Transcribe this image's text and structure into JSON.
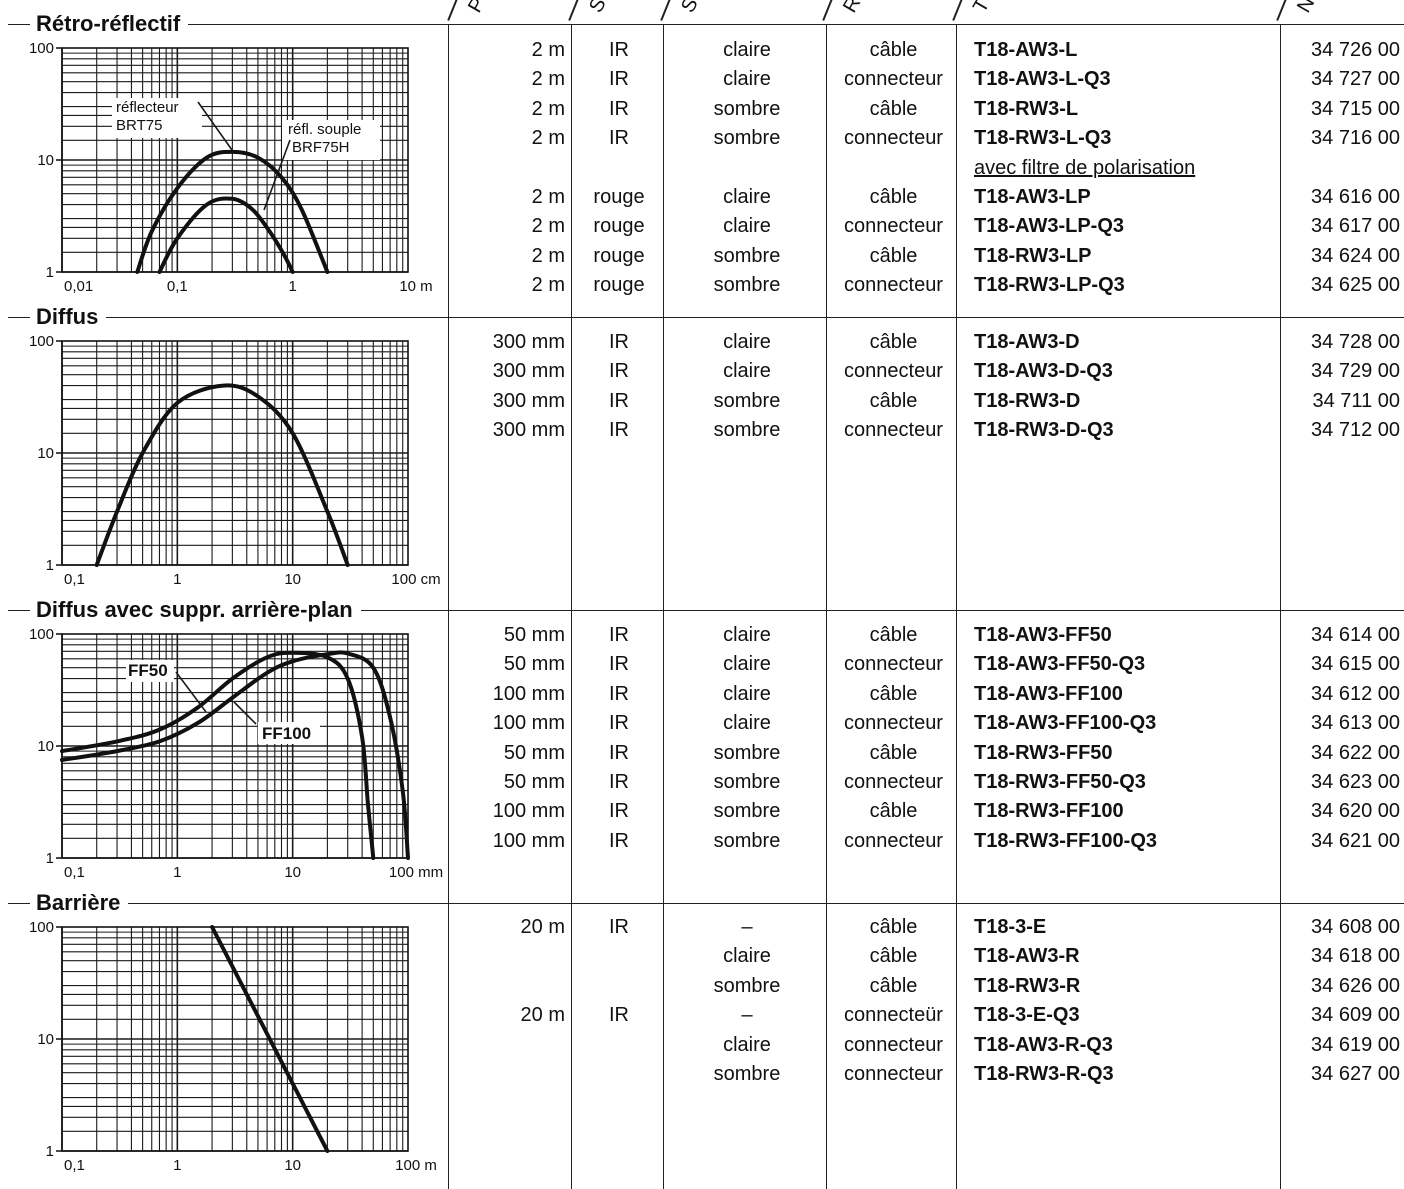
{
  "header_fragments": [
    {
      "text": "P"
    },
    {
      "text": "S"
    },
    {
      "text": "S"
    },
    {
      "text": "R"
    },
    {
      "text": "T"
    },
    {
      "text": "N"
    }
  ],
  "sections": [
    {
      "title": "Rétro-réflectif",
      "chart_data": {
        "type": "line",
        "x_scale": "log",
        "y_scale": "log",
        "xlim": [
          0.01,
          10
        ],
        "ylim": [
          1,
          100
        ],
        "x_tick_labels": [
          "0,01",
          "0,1",
          "1",
          "10 m"
        ],
        "y_tick_labels": [
          "100",
          "10",
          "1"
        ],
        "grid": true,
        "annotations": [
          "réflecteur",
          "BRT75",
          "réfl. souple",
          "BRF75H"
        ],
        "series": [
          {
            "name": "réflecteur BRT75",
            "x": [
              0.045,
              0.06,
              0.1,
              0.18,
              0.3,
              0.5,
              0.8,
              1.2,
              2.0
            ],
            "y": [
              1,
              2.3,
              5.6,
              10.5,
              11.8,
              10.5,
              7,
              3.6,
              1
            ]
          },
          {
            "name": "réfl. souple BRF75H",
            "x": [
              0.07,
              0.1,
              0.18,
              0.3,
              0.45,
              0.65,
              0.85,
              1.0
            ],
            "y": [
              1,
              2.0,
              4.0,
              4.5,
              3.6,
              2.2,
              1.4,
              1
            ]
          }
        ]
      },
      "products": [
        {
          "range": "2 m",
          "source": "IR",
          "mode": "claire",
          "connection": "câble",
          "type": "T18-AW3-L",
          "article": "34 726 00"
        },
        {
          "range": "2 m",
          "source": "IR",
          "mode": "claire",
          "connection": "connecteur",
          "type": "T18-AW3-L-Q3",
          "article": "34 727 00"
        },
        {
          "range": "2 m",
          "source": "IR",
          "mode": "sombre",
          "connection": "câble",
          "type": "T18-RW3-L",
          "article": "34 715 00"
        },
        {
          "range": "2 m",
          "source": "IR",
          "mode": "sombre",
          "connection": "connecteur",
          "type": "T18-RW3-L-Q3",
          "article": "34 716 00"
        },
        {
          "subheading": "avec filtre de polarisation"
        },
        {
          "range": "2 m",
          "source": "rouge",
          "mode": "claire",
          "connection": "câble",
          "type": "T18-AW3-LP",
          "article": "34 616 00"
        },
        {
          "range": "2 m",
          "source": "rouge",
          "mode": "claire",
          "connection": "connecteur",
          "type": "T18-AW3-LP-Q3",
          "article": "34 617 00"
        },
        {
          "range": "2 m",
          "source": "rouge",
          "mode": "sombre",
          "connection": "câble",
          "type": "T18-RW3-LP",
          "article": "34 624 00"
        },
        {
          "range": "2 m",
          "source": "rouge",
          "mode": "sombre",
          "connection": "connecteur",
          "type": "T18-RW3-LP-Q3",
          "article": "34 625 00"
        }
      ]
    },
    {
      "title": "Diffus",
      "chart_data": {
        "type": "line",
        "x_scale": "log",
        "y_scale": "log",
        "xlim": [
          0.1,
          100
        ],
        "ylim": [
          1,
          100
        ],
        "x_tick_labels": [
          "0,1",
          "1",
          "10",
          "100 cm"
        ],
        "y_tick_labels": [
          "100",
          "10",
          "1"
        ],
        "grid": true,
        "series": [
          {
            "x": [
              0.2,
              0.3,
              0.5,
              1.0,
              2.5,
              5,
              10,
              20,
              30
            ],
            "y": [
              1,
              3,
              10,
              28,
              40,
              32,
              15,
              3,
              1
            ]
          }
        ]
      },
      "products": [
        {
          "range": "300 mm",
          "source": "IR",
          "mode": "claire",
          "connection": "câble",
          "type": "T18-AW3-D",
          "article": "34 728 00"
        },
        {
          "range": "300 mm",
          "source": "IR",
          "mode": "claire",
          "connection": "connecteur",
          "type": "T18-AW3-D-Q3",
          "article": "34 729 00"
        },
        {
          "range": "300 mm",
          "source": "IR",
          "mode": "sombre",
          "connection": "câble",
          "type": "T18-RW3-D",
          "article": "34 711 00"
        },
        {
          "range": "300 mm",
          "source": "IR",
          "mode": "sombre",
          "connection": "connecteur",
          "type": "T18-RW3-D-Q3",
          "article": "34 712 00"
        }
      ]
    },
    {
      "title": "Diffus  avec suppr. arrière-plan",
      "chart_data": {
        "type": "line",
        "x_scale": "log",
        "y_scale": "log",
        "xlim": [
          0.1,
          100
        ],
        "ylim": [
          1,
          100
        ],
        "x_tick_labels": [
          "0,1",
          "1",
          "10",
          "100 mm"
        ],
        "y_tick_labels": [
          "100",
          "10",
          "1"
        ],
        "grid": true,
        "series": [
          {
            "name": "FF50",
            "x": [
              0.1,
              0.3,
              0.7,
              1.5,
              3,
              6,
              10,
              20,
              30,
              40,
              45,
              50
            ],
            "y": [
              9,
              11,
              14,
              22,
              40,
              62,
              68,
              62,
              40,
              12,
              3,
              1
            ]
          },
          {
            "name": "FF100",
            "x": [
              0.1,
              0.3,
              0.7,
              1.5,
              3,
              6,
              10,
              20,
              30,
              50,
              70,
              90,
              100
            ],
            "y": [
              7.5,
              9,
              11,
              16,
              27,
              45,
              57,
              66,
              67,
              50,
              18,
              4,
              1
            ]
          }
        ]
      },
      "products": [
        {
          "range": "50 mm",
          "source": "IR",
          "mode": "claire",
          "connection": "câble",
          "type": "T18-AW3-FF50",
          "article": "34 614 00"
        },
        {
          "range": "50 mm",
          "source": "IR",
          "mode": "claire",
          "connection": "connecteur",
          "type": "T18-AW3-FF50-Q3",
          "article": "34 615 00"
        },
        {
          "range": "100 mm",
          "source": "IR",
          "mode": "claire",
          "connection": "câble",
          "type": "T18-AW3-FF100",
          "article": "34 612 00"
        },
        {
          "range": "100 mm",
          "source": "IR",
          "mode": "claire",
          "connection": "connecteur",
          "type": "T18-AW3-FF100-Q3",
          "article": "34 613 00"
        },
        {
          "range": "50 mm",
          "source": "IR",
          "mode": "sombre",
          "connection": "câble",
          "type": "T18-RW3-FF50",
          "article": "34 622 00"
        },
        {
          "range": "50 mm",
          "source": "IR",
          "mode": "sombre",
          "connection": "connecteur",
          "type": "T18-RW3-FF50-Q3",
          "article": "34 623 00"
        },
        {
          "range": "100 mm",
          "source": "IR",
          "mode": "sombre",
          "connection": "câble",
          "type": "T18-RW3-FF100",
          "article": "34 620 00"
        },
        {
          "range": "100 mm",
          "source": "IR",
          "mode": "sombre",
          "connection": "connecteur",
          "type": "T18-RW3-FF100-Q3",
          "article": "34 621 00"
        }
      ]
    },
    {
      "title": "Barrière",
      "chart_data": {
        "type": "line",
        "x_scale": "log",
        "y_scale": "log",
        "xlim": [
          0.1,
          100
        ],
        "ylim": [
          1,
          100
        ],
        "x_tick_labels": [
          "0,1",
          "1",
          "10",
          "100 m"
        ],
        "y_tick_labels": [
          "100",
          "10",
          "1"
        ],
        "grid": true,
        "series": [
          {
            "x": [
              2,
              20
            ],
            "y": [
              100,
              1
            ]
          }
        ]
      },
      "products": [
        {
          "range": "20 m",
          "source": "IR",
          "mode": "–",
          "connection": "câble",
          "type": "T18-3-E",
          "article": "34 608 00"
        },
        {
          "range": "",
          "source": "",
          "mode": "claire",
          "connection": "câble",
          "type": "T18-AW3-R",
          "article": "34 618 00"
        },
        {
          "range": "",
          "source": "",
          "mode": "sombre",
          "connection": "câble",
          "type": "T18-RW3-R",
          "article": "34 626 00"
        },
        {
          "range": "20 m",
          "source": "IR",
          "mode": "–",
          "connection": "connecteür",
          "type": "T18-3-E-Q3",
          "article": "34 609 00"
        },
        {
          "range": "",
          "source": "",
          "mode": "claire",
          "connection": "connecteur",
          "type": "T18-AW3-R-Q3",
          "article": "34 619 00"
        },
        {
          "range": "",
          "source": "",
          "mode": "sombre",
          "connection": "connecteur",
          "type": "T18-RW3-R-Q3",
          "article": "34 627 00"
        }
      ]
    }
  ]
}
